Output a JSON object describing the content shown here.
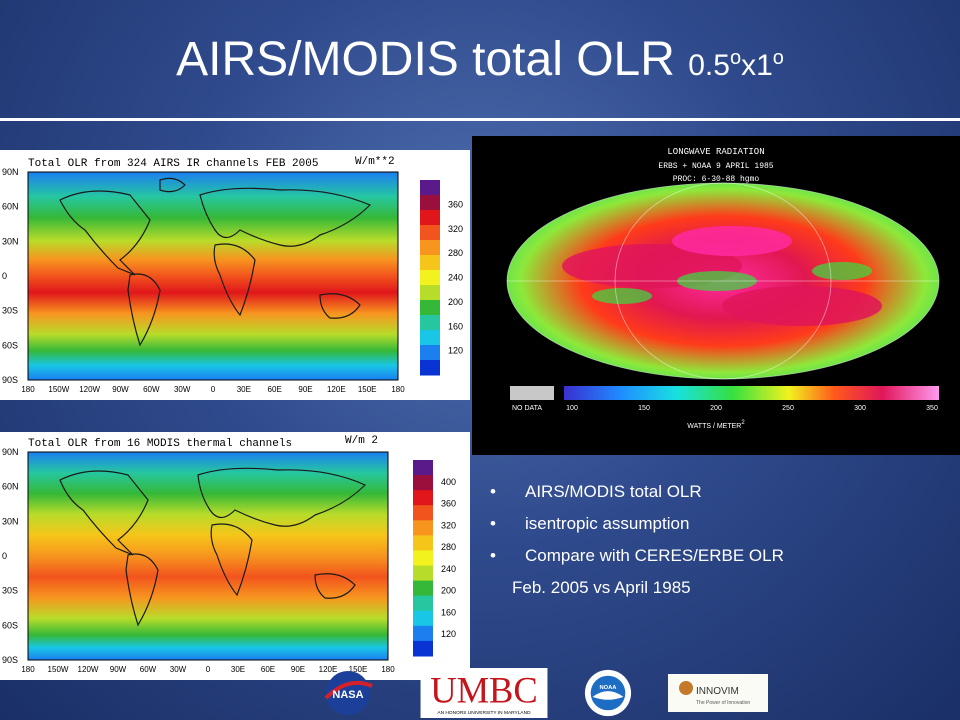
{
  "slide": {
    "title_main": "AIRS/MODIS total OLR ",
    "title_res_a": "0.5",
    "title_res_sup_a": "o",
    "title_res_b": "x1",
    "title_res_sup_b": "o"
  },
  "airs_map": {
    "title": "Total OLR from 324 AIRS IR channels FEB 2005",
    "units": "W/m**2",
    "lat_labels": [
      "90N",
      "60N",
      "30N",
      "0",
      "30S",
      "60S",
      "90S"
    ],
    "lon_labels": [
      "180",
      "150W",
      "120W",
      "90W",
      "60W",
      "30W",
      "0",
      "30E",
      "60E",
      "90E",
      "120E",
      "150E",
      "180"
    ],
    "colorbar_labels": [
      "360",
      "320",
      "280",
      "240",
      "200",
      "160",
      "120"
    ]
  },
  "modis_map": {
    "title": "Total OLR from 16 MODIS thermal channels",
    "units": "W/m 2",
    "lat_labels": [
      "90N",
      "60N",
      "30N",
      "0",
      "30S",
      "60S",
      "90S"
    ],
    "lon_labels": [
      "180",
      "150W",
      "120W",
      "90W",
      "60W",
      "30W",
      "0",
      "30E",
      "60E",
      "90E",
      "120E",
      "150E",
      "180"
    ],
    "colorbar_labels": [
      "400",
      "360",
      "320",
      "280",
      "240",
      "200",
      "160",
      "120"
    ]
  },
  "erbe_map": {
    "title": "LONGWAVE RADIATION",
    "line2": "ERBS  +  NOAA 9      APRIL 1985",
    "line3": "PROC: 6-30-88 hgmo",
    "nodata": "NO DATA",
    "scale_labels": [
      "100",
      "150",
      "200",
      "250",
      "300",
      "350"
    ],
    "units_prefix": "WATTS / METER",
    "units_sup": "2"
  },
  "bullets": {
    "items": [
      "AIRS/MODIS total OLR",
      " isentropic assumption",
      "Compare with CERES/ERBE OLR"
    ],
    "continuation": "Feb. 2005 vs April 1985",
    "marker": "•"
  },
  "logos": {
    "nasa": "NASA",
    "umbc": "UMBC",
    "umbc_tagline": "AN HONORS UNIVERSITY IN MARYLAND",
    "noaa": "NOAA",
    "innovim": "INNOVIM",
    "innovim_tagline": "The Power of Innovation"
  },
  "colors": {
    "airs_scale": [
      "#5a1a8a",
      "#9b0f3c",
      "#e0161b",
      "#f2541d",
      "#f7951f",
      "#f6c51a",
      "#f2f21e",
      "#b8dc2a",
      "#35b838",
      "#26c7a0",
      "#19c6e6",
      "#1b7ff0",
      "#0a33d4"
    ],
    "modis_scale": [
      "#5a1a8a",
      "#9b0f3c",
      "#e0161b",
      "#f2541d",
      "#f7951f",
      "#f6c51a",
      "#f2f21e",
      "#b8dc2a",
      "#35b838",
      "#26c7a0",
      "#19c6e6",
      "#1b7ff0",
      "#0a33d4"
    ]
  }
}
